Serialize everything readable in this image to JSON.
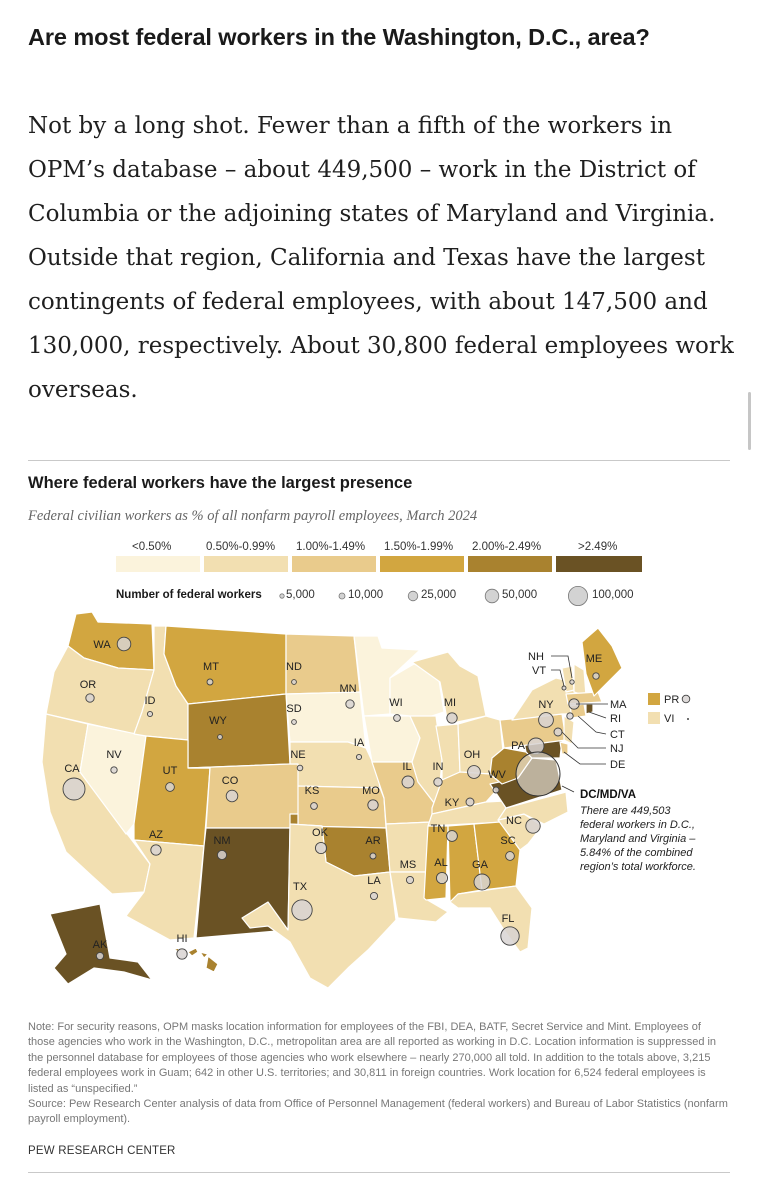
{
  "headline": "Are most federal workers in the Washington, D.C., area?",
  "intro": "Not by a long shot. Fewer than a fifth of the workers in OPM’s database – about 449,500 – work in the District of Columbia or the adjoining states of Maryland and Virginia. Outside that region, California and Texas have the largest contingents of federal employees, with about 147,500 and 130,000, respectively. About 30,800 federal employees work overseas.",
  "chart": {
    "title": "Where federal workers have the largest presence",
    "subtitle": "Federal civilian workers as % of all nonfarm payroll employees, March 2024"
  },
  "legend": {
    "bins": [
      {
        "label": "<0.50%",
        "color": "#fbf3dc"
      },
      {
        "label": "0.50%-0.99%",
        "color": "#f2dfb1"
      },
      {
        "label": "1.00%-1.49%",
        "color": "#e9cb8c"
      },
      {
        "label": "1.50%-1.99%",
        "color": "#d2a640"
      },
      {
        "label": "2.00%-2.49%",
        "color": "#a9822f"
      },
      {
        "label": ">2.49%",
        "color": "#6a5224"
      }
    ],
    "bubble_title": "Number of federal workers",
    "bubbles": [
      {
        "label": "5,000",
        "value": 5000
      },
      {
        "label": "10,000",
        "value": 10000
      },
      {
        "label": "25,000",
        "value": 25000
      },
      {
        "label": "50,000",
        "value": 50000
      },
      {
        "label": "100,000",
        "value": 100000
      }
    ]
  },
  "map": {
    "states": [
      {
        "abbr": "WA",
        "bin": 4
      },
      {
        "abbr": "OR",
        "bin": 2
      },
      {
        "abbr": "CA",
        "bin": 2
      },
      {
        "abbr": "NV",
        "bin": 1
      },
      {
        "abbr": "ID",
        "bin": 2
      },
      {
        "abbr": "MT",
        "bin": 4
      },
      {
        "abbr": "WY",
        "bin": 5
      },
      {
        "abbr": "UT",
        "bin": 4
      },
      {
        "abbr": "AZ",
        "bin": 2
      },
      {
        "abbr": "CO",
        "bin": 3
      },
      {
        "abbr": "NM",
        "bin": 6
      },
      {
        "abbr": "ND",
        "bin": 3
      },
      {
        "abbr": "SD",
        "bin": 1
      },
      {
        "abbr": "NE",
        "bin": 2
      },
      {
        "abbr": "KS",
        "bin": 3
      },
      {
        "abbr": "OK",
        "bin": 5
      },
      {
        "abbr": "TX",
        "bin": 2
      },
      {
        "abbr": "MN",
        "bin": 1
      },
      {
        "abbr": "IA",
        "bin": 1
      },
      {
        "abbr": "MO",
        "bin": 3
      },
      {
        "abbr": "AR",
        "bin": 2
      },
      {
        "abbr": "LA",
        "bin": 2
      },
      {
        "abbr": "WI",
        "bin": 1
      },
      {
        "abbr": "IL",
        "bin": 2
      },
      {
        "abbr": "MI",
        "bin": 2
      },
      {
        "abbr": "IN",
        "bin": 2
      },
      {
        "abbr": "OH",
        "bin": 2
      },
      {
        "abbr": "KY",
        "bin": 3
      },
      {
        "abbr": "TN",
        "bin": 2
      },
      {
        "abbr": "MS",
        "bin": 4
      },
      {
        "abbr": "AL",
        "bin": 4
      },
      {
        "abbr": "GA",
        "bin": 4
      },
      {
        "abbr": "FL",
        "bin": 2
      },
      {
        "abbr": "SC",
        "bin": 2
      },
      {
        "abbr": "NC",
        "bin": 2
      },
      {
        "abbr": "WV",
        "bin": 5
      },
      {
        "abbr": "PA",
        "bin": 3
      },
      {
        "abbr": "NY",
        "bin": 2
      },
      {
        "abbr": "ME",
        "bin": 4
      },
      {
        "abbr": "AK",
        "bin": 6
      },
      {
        "abbr": "HI",
        "bin": 5
      }
    ],
    "callouts": [
      "NH",
      "VT",
      "MA",
      "RI",
      "CT",
      "NJ",
      "DE"
    ],
    "territories": [
      {
        "abbr": "PR",
        "bin": 4
      },
      {
        "abbr": "VI",
        "bin": 2
      }
    ],
    "dc_label": "DC/MD/VA",
    "dc_text": "There are 449,503 federal workers in D.C., Maryland and Virginia – 5.84% of the combined region’s total workforce."
  },
  "note": "Note: For security reasons, OPM masks location information for employees of the FBI, DEA, BATF, Secret Service and Mint. Employees of those agencies who work in the Washington, D.C., metropolitan area are all reported as working in D.C. Location information is suppressed in the personnel database for employees of those agencies who work elsewhere – nearly 270,000 all told. In addition to the totals above, 3,215 federal employees work in Guam; 642 in other U.S. territories; and 30,811 in foreign countries. Work location for 6,524 federal employees is listed as “unspecified.”",
  "source": "Source: Pew Research Center analysis of data from Office of Personnel Management (federal workers) and Bureau of Labor Statistics (nonfarm payroll employment).",
  "brand": "PEW RESEARCH CENTER"
}
